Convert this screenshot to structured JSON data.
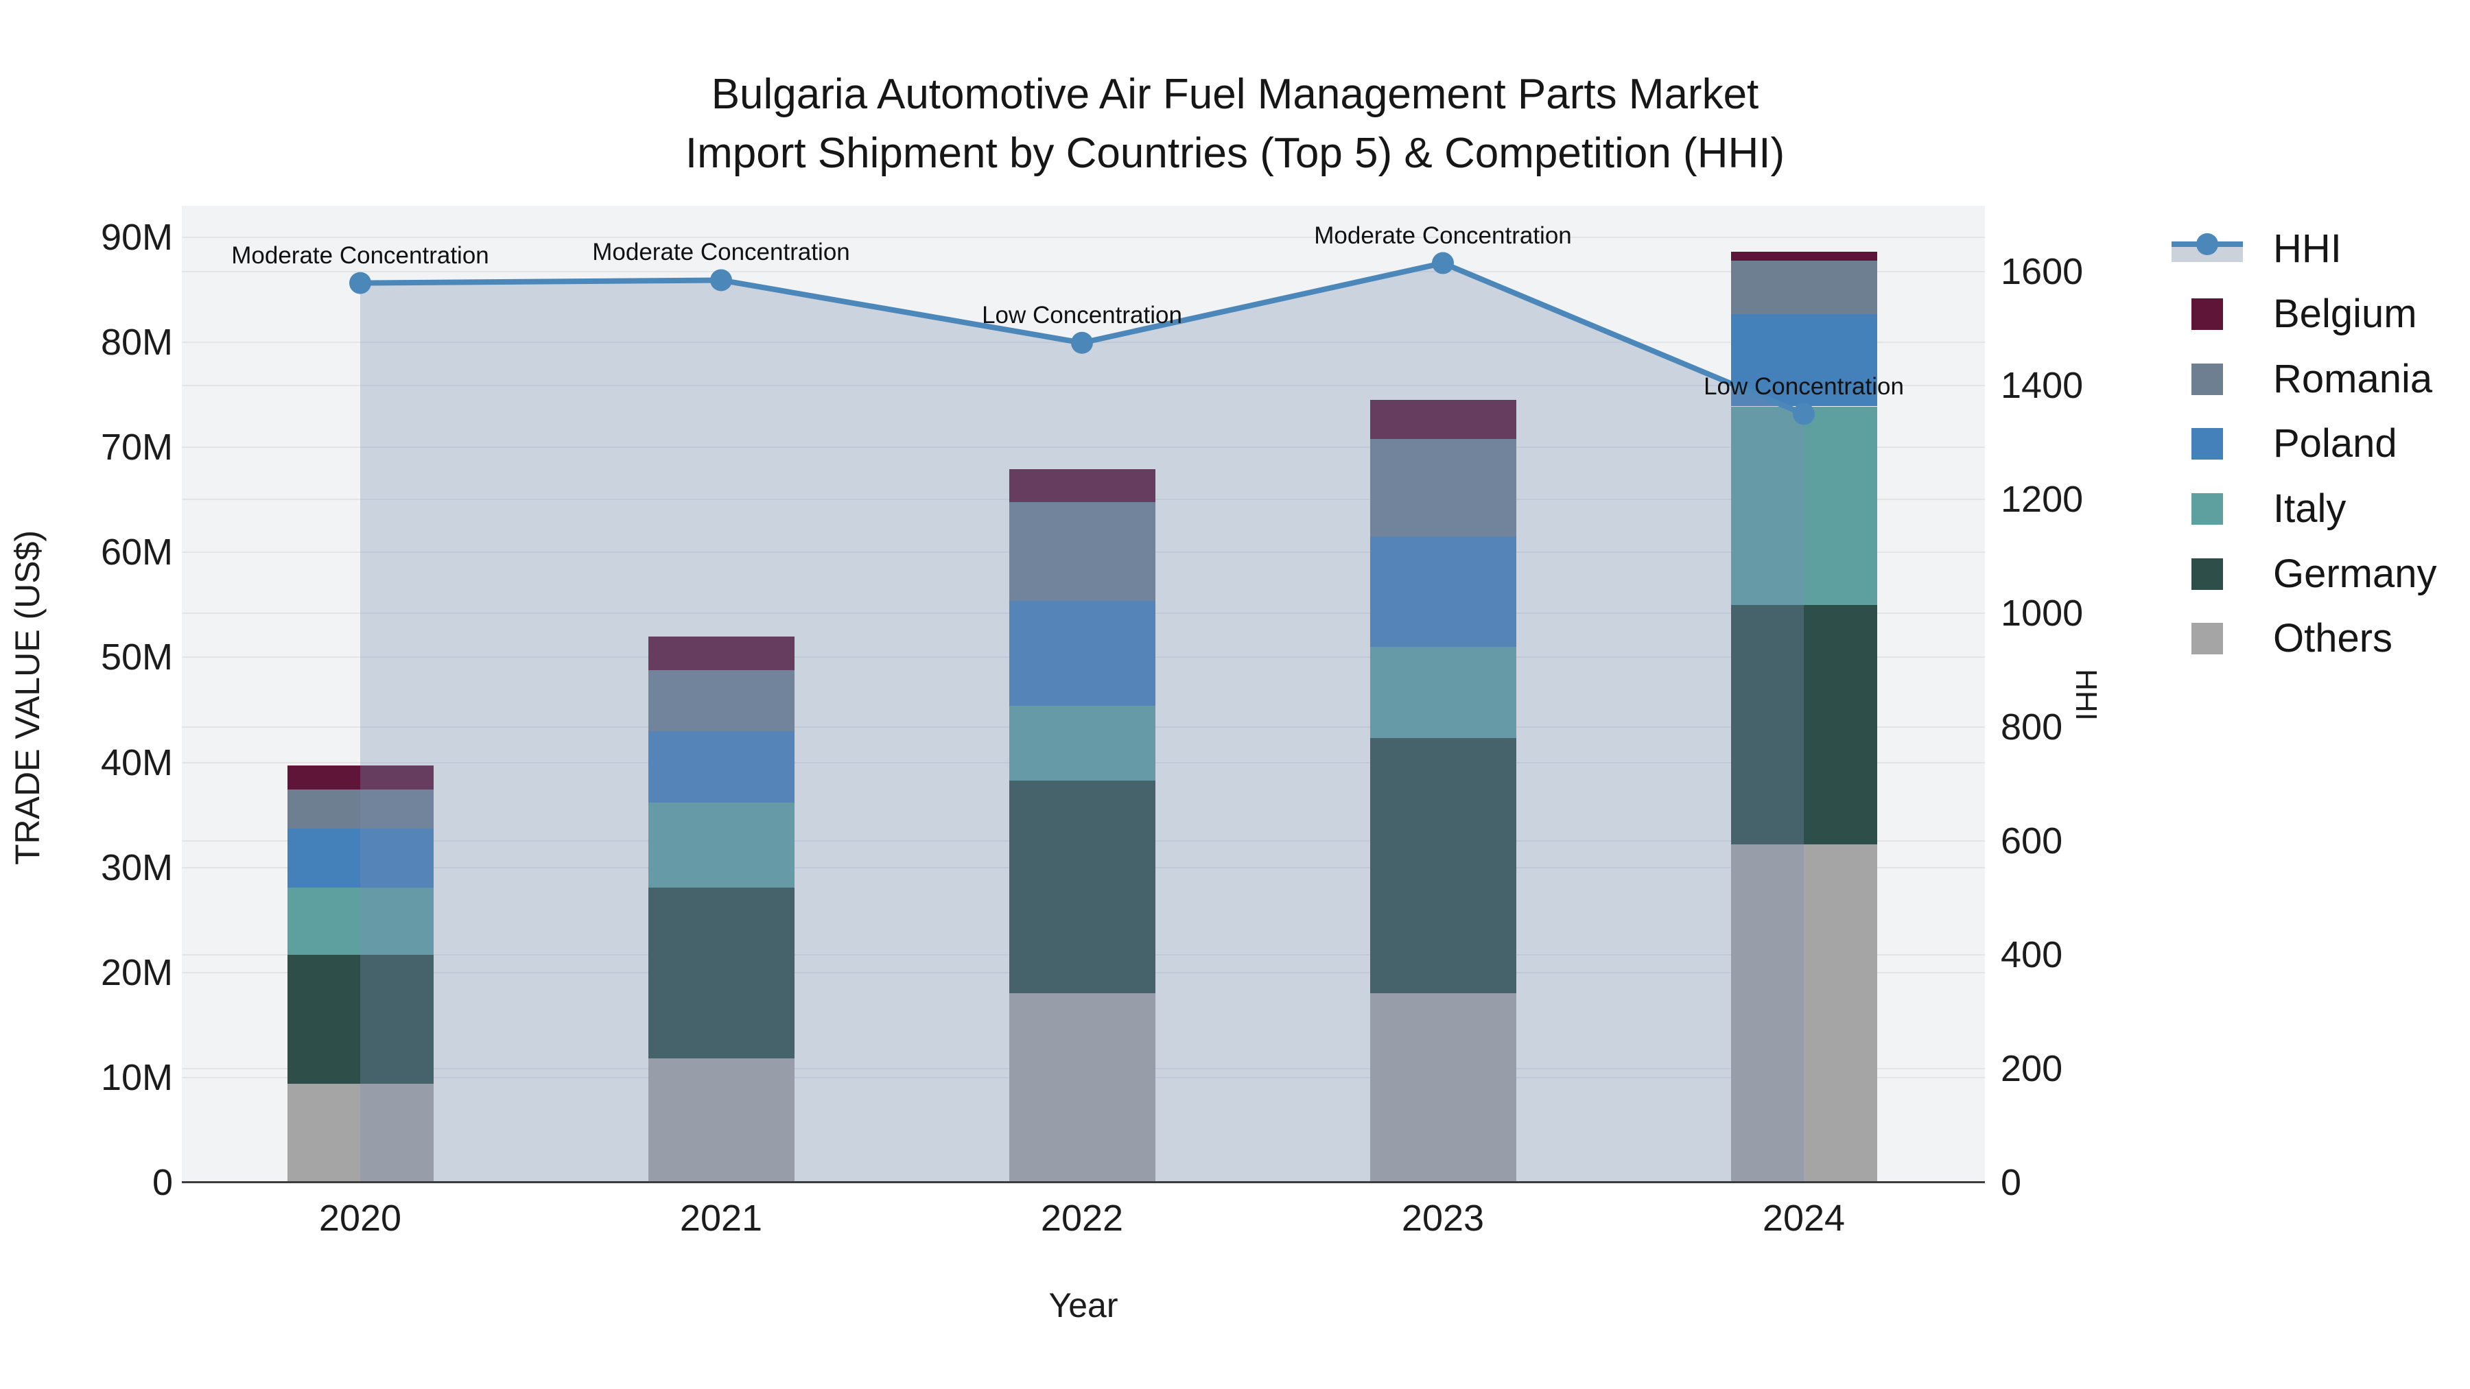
{
  "title": {
    "line1": "Bulgaria Automotive Air Fuel Management Parts Market",
    "line2": "Import Shipment by Countries (Top 5) & Competition (HHI)"
  },
  "x_axis": {
    "title": "Year",
    "ticks": [
      "2020",
      "2021",
      "2022",
      "2023",
      "2024"
    ]
  },
  "y_left_axis": {
    "title": "TRADE VALUE (US$)",
    "ticks": [
      "0",
      "10M",
      "20M",
      "30M",
      "40M",
      "50M",
      "60M",
      "70M",
      "80M",
      "90M"
    ]
  },
  "y_right_axis": {
    "title": "HHI",
    "ticks": [
      "0",
      "200",
      "400",
      "600",
      "800",
      "1000",
      "1200",
      "1400",
      "1600"
    ]
  },
  "legend": {
    "items": [
      {
        "label": "HHI",
        "type": "line",
        "color": "#4c87b9"
      },
      {
        "label": "Belgium",
        "type": "swatch",
        "color": "#5e1537"
      },
      {
        "label": "Romania",
        "type": "swatch",
        "color": "#6d7f90"
      },
      {
        "label": "Poland",
        "type": "swatch",
        "color": "#4481ba"
      },
      {
        "label": "Italy",
        "type": "swatch",
        "color": "#5ea0a0"
      },
      {
        "label": "Germany",
        "type": "swatch",
        "color": "#2e4e4a"
      },
      {
        "label": "Others",
        "type": "swatch",
        "color": "#a5a5a5"
      }
    ]
  },
  "colors": {
    "plot_bg": "#f2f3f4",
    "grid": "#e3e4e6",
    "axis_line": "#3d3d3d",
    "hhi_line": "#4c87b9",
    "hhi_fill": "rgba(120,142,180,0.32)"
  },
  "chart_data": {
    "type": "bar+line",
    "title": "Bulgaria Automotive Air Fuel Management Parts Market — Import Shipment by Countries (Top 5) & Competition (HHI)",
    "categories": [
      "2020",
      "2021",
      "2022",
      "2023",
      "2024"
    ],
    "bar_unit": "Million US$",
    "stack_order_bottom_to_top": [
      "Others",
      "Germany",
      "Italy",
      "Poland",
      "Romania",
      "Belgium"
    ],
    "series": [
      {
        "name": "Others",
        "color": "#a5a5a5",
        "values": [
          9.4,
          11.8,
          18.0,
          18.0,
          32.2
        ]
      },
      {
        "name": "Germany",
        "color": "#2e4e4a",
        "values": [
          12.3,
          16.3,
          20.3,
          24.3,
          22.8
        ]
      },
      {
        "name": "Italy",
        "color": "#5ea0a0",
        "values": [
          6.4,
          8.1,
          7.1,
          8.7,
          18.9
        ]
      },
      {
        "name": "Poland",
        "color": "#4481ba",
        "values": [
          5.6,
          6.8,
          10.0,
          10.5,
          8.8
        ]
      },
      {
        "name": "Romania",
        "color": "#6d7f90",
        "values": [
          3.7,
          5.8,
          9.4,
          9.3,
          5.1
        ]
      },
      {
        "name": "Belgium",
        "color": "#5e1537",
        "values": [
          2.3,
          3.2,
          3.1,
          3.7,
          0.8
        ]
      }
    ],
    "bar_totals": [
      39.7,
      52.0,
      67.9,
      74.5,
      88.6
    ],
    "hhi_line": {
      "name": "HHI",
      "values": [
        1580,
        1585,
        1475,
        1615,
        1350
      ]
    },
    "annotations": [
      "Moderate Concentration",
      "Moderate Concentration",
      "Low Concentration",
      "Moderate Concentration",
      "Low Concentration"
    ],
    "xlabel": "Year",
    "ylabel_left": "TRADE VALUE (US$)",
    "ylabel_right": "HHI",
    "ylim_left": [
      0,
      90000000
    ],
    "ylim_right": [
      0,
      1600
    ],
    "grid": true,
    "legend_position": "right"
  }
}
